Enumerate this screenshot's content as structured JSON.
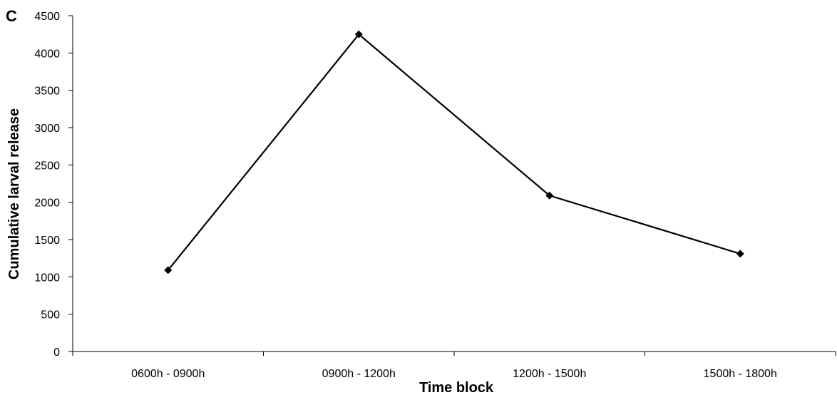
{
  "chart_data": {
    "type": "line",
    "panel_label": "C",
    "title": "",
    "xlabel": "Time block",
    "ylabel": "Cumulative larval release",
    "categories": [
      "0600h - 0900h",
      "0900h - 1200h",
      "1200h - 1500h",
      "1500h - 1800h"
    ],
    "series": [
      {
        "values": [
          1090,
          4250,
          2090,
          1310
        ]
      }
    ],
    "ylim": [
      0,
      4500
    ],
    "yticks": [
      0,
      500,
      1000,
      1500,
      2000,
      2500,
      3000,
      3500,
      4000,
      4500
    ],
    "grid": false,
    "legend": "none",
    "marker": "diamond",
    "line_color": "#000000"
  }
}
